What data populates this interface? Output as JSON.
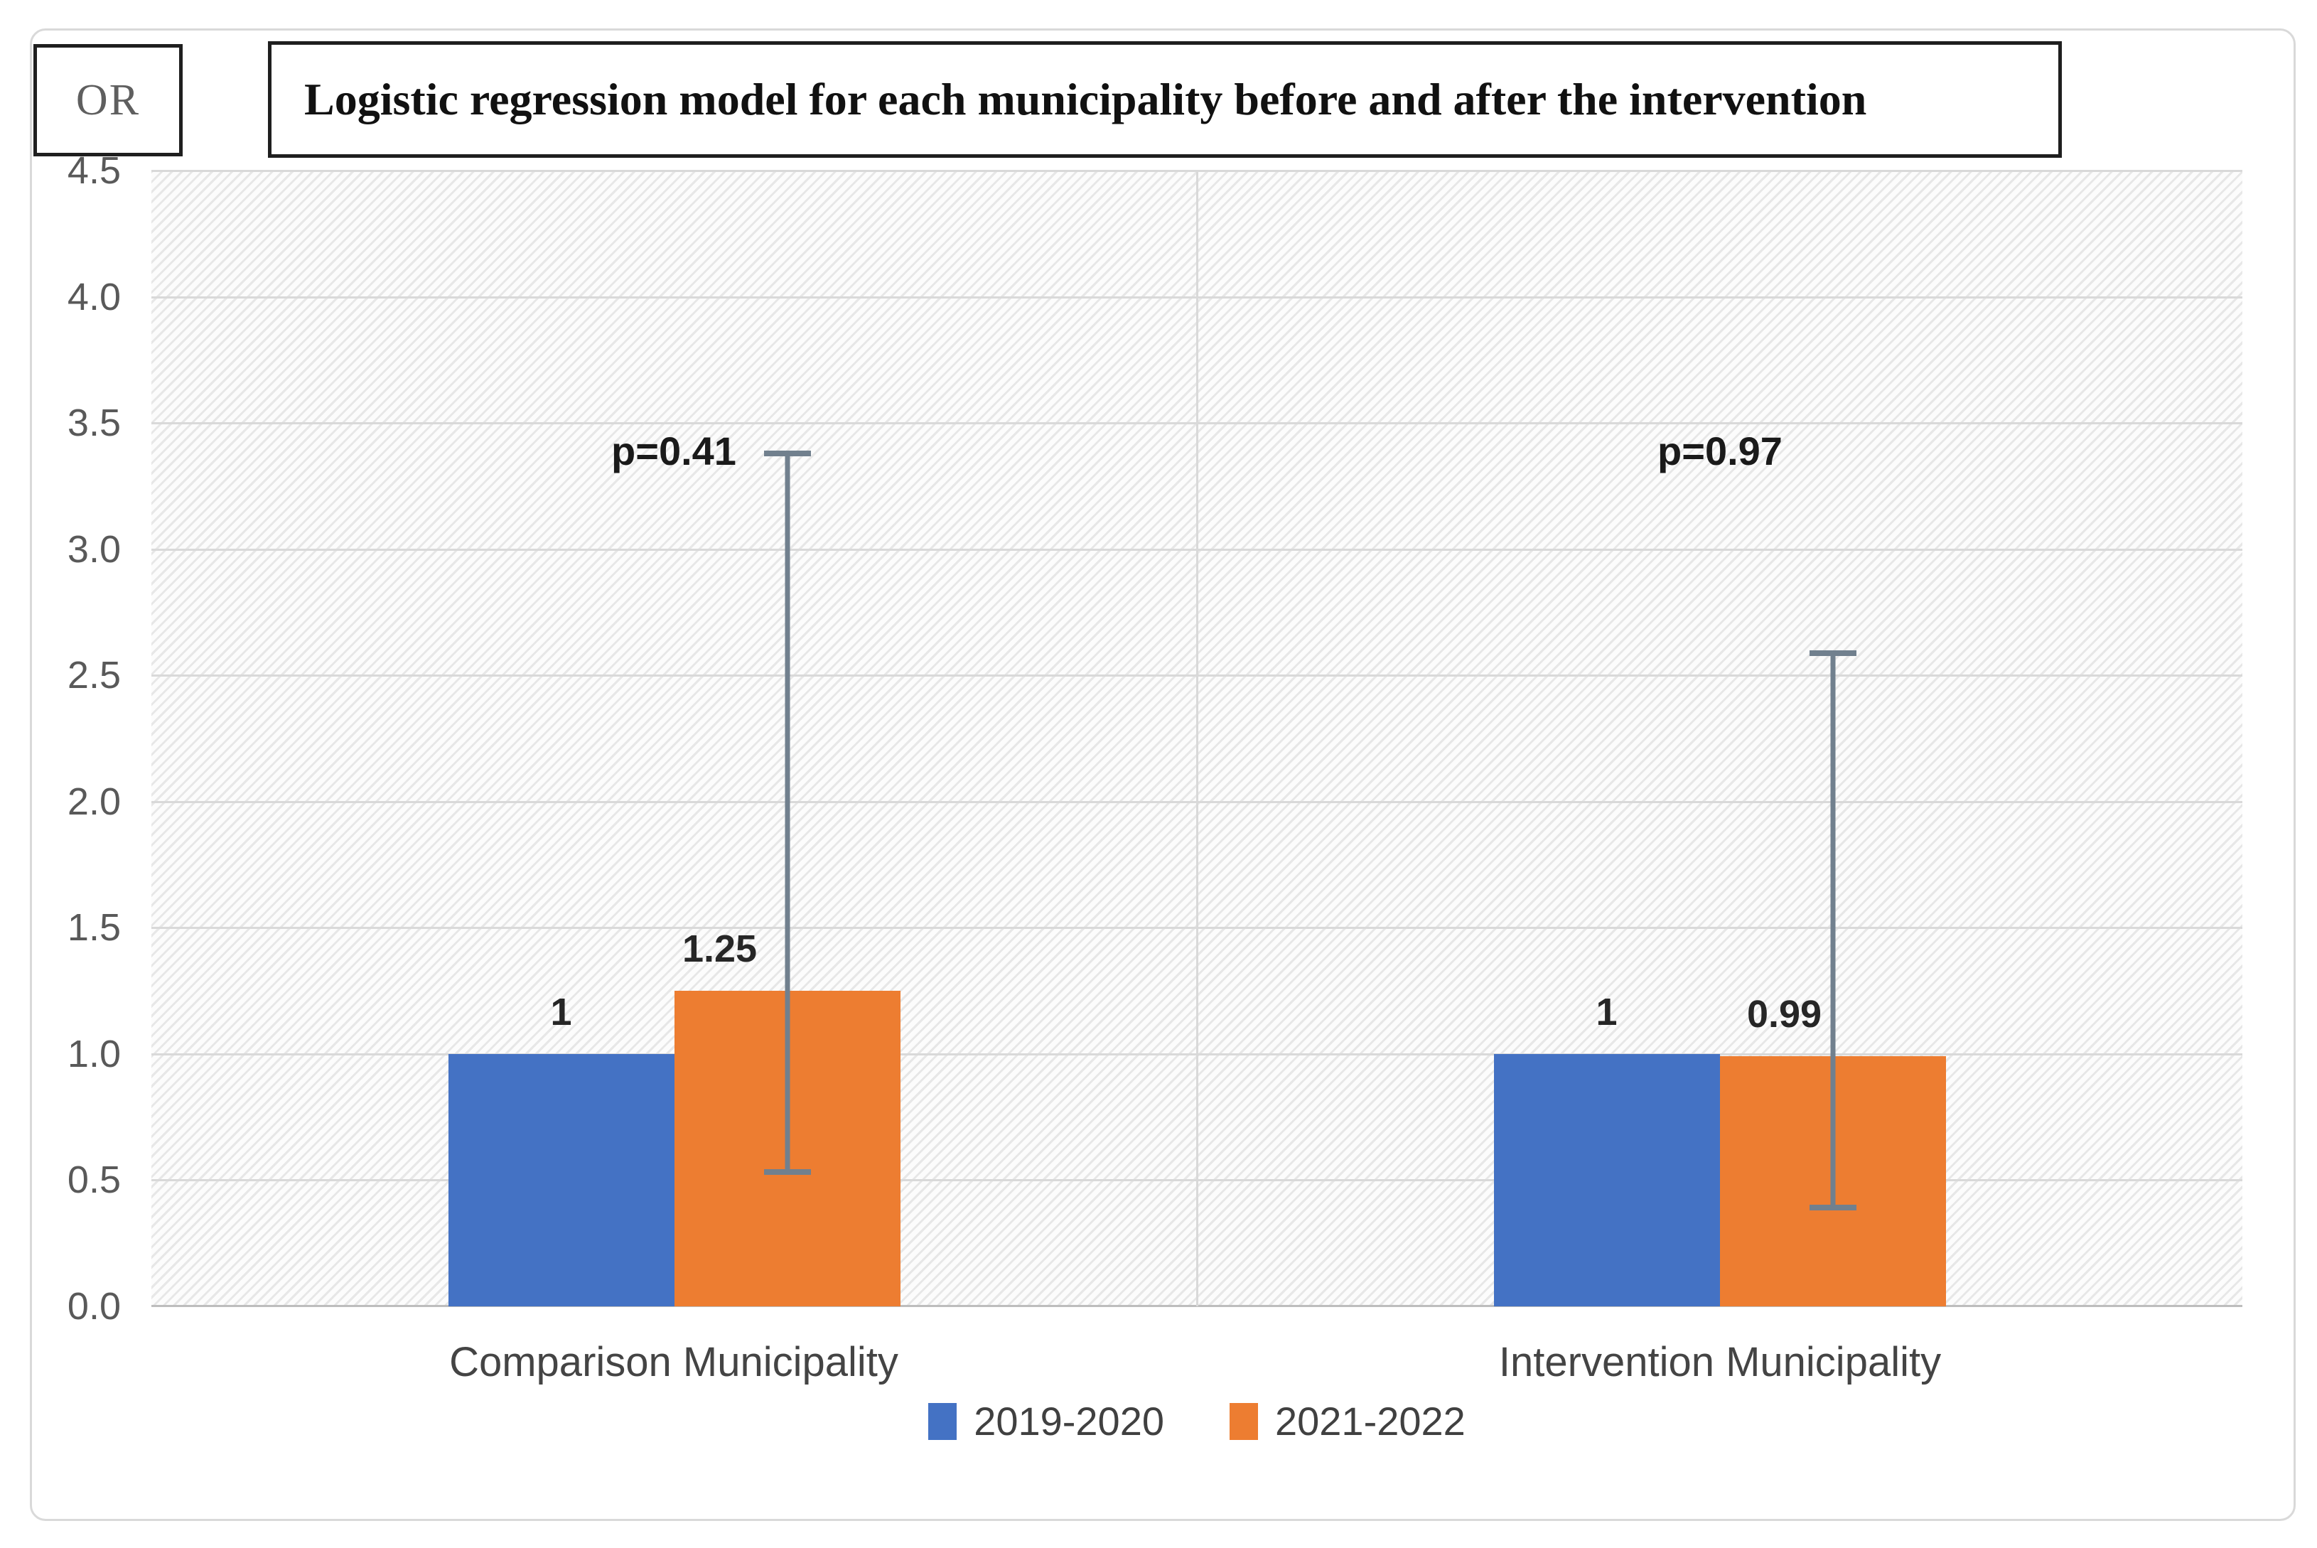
{
  "figure": {
    "or_label": "OR",
    "title": "Logistic regression model for each municipality before and after the intervention"
  },
  "chart_data": {
    "type": "bar",
    "title": "Logistic regression model for each municipality before and after the intervention",
    "y_axis_label": "OR",
    "categories": [
      "Comparison Municipality",
      "Intervention Municipality"
    ],
    "series": [
      {
        "name": "2019-2020",
        "color": "#4472C4",
        "values": [
          1,
          1
        ]
      },
      {
        "name": "2021-2022",
        "color": "#ED7D31",
        "values": [
          1.25,
          0.99
        ]
      }
    ],
    "data_labels": [
      [
        "1",
        "1"
      ],
      [
        "1.25",
        "0.99"
      ]
    ],
    "p_value_labels": [
      "p=0.41",
      "p=0.97"
    ],
    "error_bars": [
      {
        "series": "2021-2022",
        "category": "Comparison Municipality",
        "low": 0.52,
        "high": 3.39
      },
      {
        "series": "2021-2022",
        "category": "Intervention Municipality",
        "low": 0.38,
        "high": 2.6
      }
    ],
    "ylim": [
      0,
      4.5
    ],
    "y_tick_step": 0.5,
    "y_tick_labels": [
      "0.0",
      "0.5",
      "1.0",
      "1.5",
      "2.0",
      "2.5",
      "3.0",
      "3.5",
      "4.0",
      "4.5"
    ],
    "grid": true,
    "legend_position": "bottom",
    "plot_background": "diagonal-hatch"
  },
  "colors": {
    "series1": "#4472C4",
    "series2": "#ED7D31",
    "gridline": "#D9D9D9",
    "baseline": "#BDBDBD",
    "error_bar": "#71808E",
    "tick_text": "#595959",
    "category_text": "#444444",
    "data_label_text": "#262626",
    "frame_border": "#D9D9D9",
    "box_border": "#1F1F1F"
  }
}
